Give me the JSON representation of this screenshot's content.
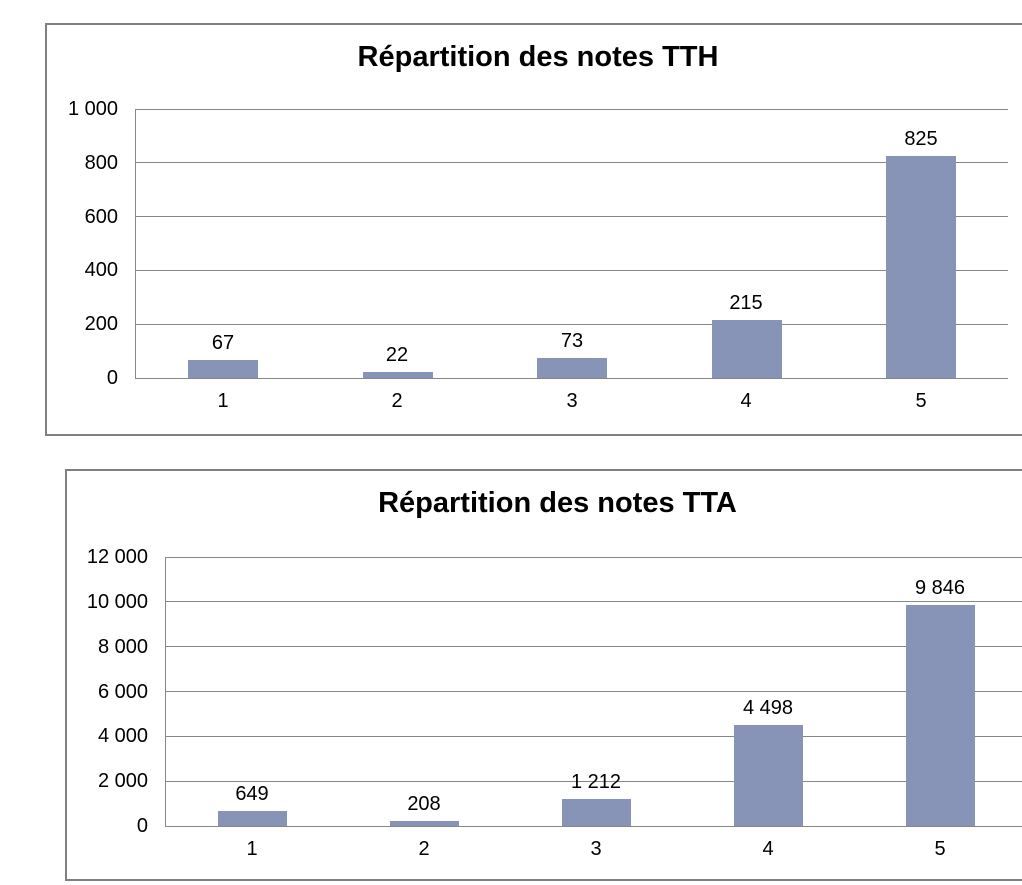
{
  "colors": {
    "bar_fill": "#8794B8",
    "gridline": "#878787",
    "frame_border": "#808080",
    "text": "#000000",
    "background": "#FFFFFF"
  },
  "chart_data": [
    {
      "type": "bar",
      "title": "Répartition des notes TTH",
      "categories": [
        "1",
        "2",
        "3",
        "4",
        "5"
      ],
      "values": [
        67,
        22,
        73,
        215,
        825
      ],
      "value_labels": [
        "67",
        "22",
        "73",
        "215",
        "825"
      ],
      "xlabel": "",
      "ylabel": "",
      "ylim": [
        0,
        1000
      ],
      "yticks": [
        {
          "value": 0,
          "label": "0"
        },
        {
          "value": 200,
          "label": "200"
        },
        {
          "value": 400,
          "label": "400"
        },
        {
          "value": 600,
          "label": "600"
        },
        {
          "value": 800,
          "label": "800"
        },
        {
          "value": 1000,
          "label": "1 000"
        }
      ],
      "grid": true,
      "legend": "none"
    },
    {
      "type": "bar",
      "title": "Répartition des notes TTA",
      "categories": [
        "1",
        "2",
        "3",
        "4",
        "5"
      ],
      "values": [
        649,
        208,
        1212,
        4498,
        9846
      ],
      "value_labels": [
        "649",
        "208",
        "1 212",
        "4 498",
        "9 846"
      ],
      "xlabel": "",
      "ylabel": "",
      "ylim": [
        0,
        12000
      ],
      "yticks": [
        {
          "value": 0,
          "label": "0"
        },
        {
          "value": 2000,
          "label": "2 000"
        },
        {
          "value": 4000,
          "label": "4 000"
        },
        {
          "value": 6000,
          "label": "6 000"
        },
        {
          "value": 8000,
          "label": "8 000"
        },
        {
          "value": 10000,
          "label": "10 000"
        },
        {
          "value": 12000,
          "label": "12 000"
        }
      ],
      "grid": true,
      "legend": "none"
    }
  ]
}
